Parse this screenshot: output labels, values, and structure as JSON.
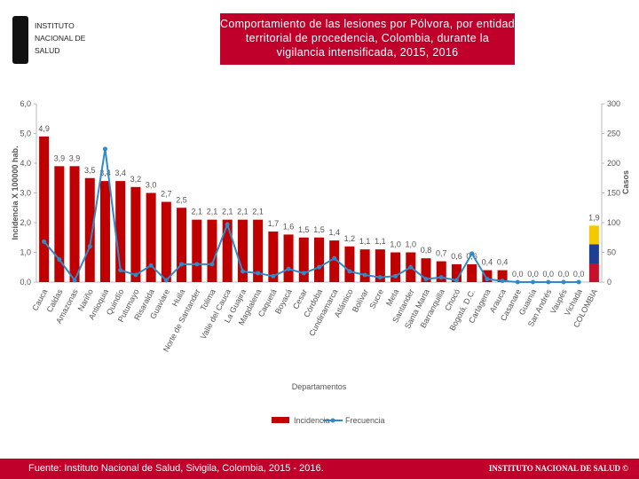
{
  "header": {
    "logo": [
      "Instituto",
      "Nacional de",
      "Salud"
    ],
    "title": "Comportamiento  de las lesiones  por  Pólvora,  por entidad territorial de procedencia, Colombia,  durante la vigilancia intensificada, 2015, 2016"
  },
  "chart_data": {
    "type": "bar",
    "categories": [
      "Cauca",
      "Caldas",
      "Amazonas",
      "Nariño",
      "Antioquia",
      "Quindío",
      "Putumayo",
      "Risaralda",
      "Guaviare",
      "Huila",
      "Norte de Santander",
      "Tolima",
      "Valle del Cauca",
      "La Guajira",
      "Magdalena",
      "Caquetá",
      "Boyacá",
      "Cesar",
      "Córdoba",
      "Cundinamarca",
      "Atlántico",
      "Bolívar",
      "Sucre",
      "Meta",
      "Santander",
      "Santa Marta",
      "Barranquilla",
      "Chocó",
      "Bogotá, D.C.",
      "Cartagena",
      "Arauca",
      "Casanare",
      "Guainía",
      "San Andrés",
      "Vaupés",
      "Vichada",
      "COLOMBIA"
    ],
    "series": [
      {
        "name": "Incidencia",
        "type": "bar",
        "colors": [
          "#c00000",
          "#c00000",
          "#c00000",
          "#c00000",
          "#c00000",
          "#c00000",
          "#c00000",
          "#c00000",
          "#c00000",
          "#c00000",
          "#c00000",
          "#c00000",
          "#c00000",
          "#c00000",
          "#c00000",
          "#c00000",
          "#c00000",
          "#c00000",
          "#c00000",
          "#c00000",
          "#c00000",
          "#c00000",
          "#c00000",
          "#c00000",
          "#c00000",
          "#c00000",
          "#c00000",
          "#c00000",
          "#c00000",
          "#c00000",
          "#c00000",
          "#c00000",
          "#c00000",
          "#c00000",
          "#c00000",
          "#c00000",
          [
            "#f5c900",
            "#1c3f94",
            "#c8102e"
          ]
        ],
        "values": [
          4.9,
          3.9,
          3.9,
          3.5,
          3.4,
          3.4,
          3.2,
          3.0,
          2.7,
          2.5,
          2.1,
          2.1,
          2.1,
          2.1,
          2.1,
          1.7,
          1.6,
          1.5,
          1.5,
          1.4,
          1.2,
          1.1,
          1.1,
          1.0,
          1.0,
          0.8,
          0.7,
          0.6,
          0.6,
          0.4,
          0.4,
          0.0,
          0.0,
          0.0,
          0.0,
          0.0,
          1.9
        ],
        "value_labels": [
          "4,9",
          "3,9",
          "3,9",
          "3,5",
          "3,4",
          "3,4",
          "3,2",
          "3,0",
          "2,7",
          "2,5",
          "2,1",
          "2,1",
          "2,1",
          "2,1",
          "2,1",
          "1,7",
          "1,6",
          "1,5",
          "1,5",
          "1,4",
          "1,2",
          "1,1",
          "1,1",
          "1,0",
          "1,0",
          "0,8",
          "0,7",
          "0,6",
          "0,6",
          "0,4",
          "0,4",
          "0,0",
          "0,0",
          "0,0",
          "0,0",
          "0,0",
          "1,9"
        ]
      },
      {
        "name": "Frecuencia",
        "type": "line",
        "axis": "y2",
        "color": "#2e8bc9",
        "values": [
          68,
          38,
          3,
          60,
          224,
          20,
          12,
          28,
          3,
          30,
          30,
          30,
          97,
          18,
          15,
          10,
          22,
          15,
          25,
          40,
          18,
          12,
          8,
          10,
          25,
          5,
          8,
          3,
          48,
          5,
          2,
          0,
          0,
          0,
          0,
          0,
          null
        ]
      }
    ],
    "ylim": [
      0,
      6
    ],
    "yticks": [
      {
        "value": 0,
        "label": "0,0"
      },
      {
        "value": 1,
        "label": "1,0"
      },
      {
        "value": 2,
        "label": "2,0"
      },
      {
        "value": 3,
        "label": "3,0"
      },
      {
        "value": 4,
        "label": "4,0"
      },
      {
        "value": 5,
        "label": "5,0"
      },
      {
        "value": 6,
        "label": "6,0"
      }
    ],
    "y2lim": [
      0,
      300
    ],
    "y2ticks": [
      0,
      50,
      100,
      150,
      200,
      250,
      300
    ],
    "ylabel": "Incidencia X 100000 hab.",
    "y2label": "Casos",
    "xlabel": "Departamentos",
    "grid": false
  },
  "footer": {
    "source": "Fuente: Instituto Nacional de Salud, Sivigila, Colombia, 2015 - 2016.",
    "brand": "INSTITUTO NACIONAL DE SALUD ©"
  }
}
